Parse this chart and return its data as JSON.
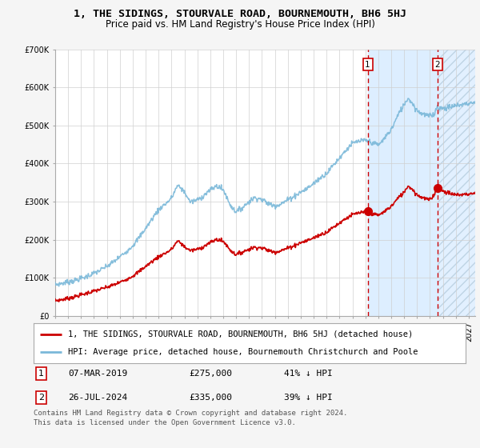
{
  "title": "1, THE SIDINGS, STOURVALE ROAD, BOURNEMOUTH, BH6 5HJ",
  "subtitle": "Price paid vs. HM Land Registry's House Price Index (HPI)",
  "ylim": [
    0,
    700000
  ],
  "yticks": [
    0,
    100000,
    200000,
    300000,
    400000,
    500000,
    600000,
    700000
  ],
  "ytick_labels": [
    "£0",
    "£100K",
    "£200K",
    "£300K",
    "£400K",
    "£500K",
    "£600K",
    "£700K"
  ],
  "xlim_start": 1995.0,
  "xlim_end": 2027.5,
  "hpi_color": "#7ab8d9",
  "price_color": "#cc0000",
  "dashed_line_color": "#cc0000",
  "background_color": "#f5f5f5",
  "plot_bg_color": "#ffffff",
  "shaded_region_color": "#ddeeff",
  "transaction1_date": 2019.18,
  "transaction1_price": 275000,
  "transaction2_date": 2024.57,
  "transaction2_price": 335000,
  "legend_label_red": "1, THE SIDINGS, STOURVALE ROAD, BOURNEMOUTH, BH6 5HJ (detached house)",
  "legend_label_blue": "HPI: Average price, detached house, Bournemouth Christchurch and Poole",
  "table_row1": [
    "1",
    "07-MAR-2019",
    "£275,000",
    "41% ↓ HPI"
  ],
  "table_row2": [
    "2",
    "26-JUL-2024",
    "£335,000",
    "39% ↓ HPI"
  ],
  "footer": "Contains HM Land Registry data © Crown copyright and database right 2024.\nThis data is licensed under the Open Government Licence v3.0.",
  "title_fontsize": 9.5,
  "subtitle_fontsize": 8.5,
  "tick_fontsize": 7,
  "legend_fontsize": 7.5,
  "table_fontsize": 8,
  "footer_fontsize": 6.5
}
